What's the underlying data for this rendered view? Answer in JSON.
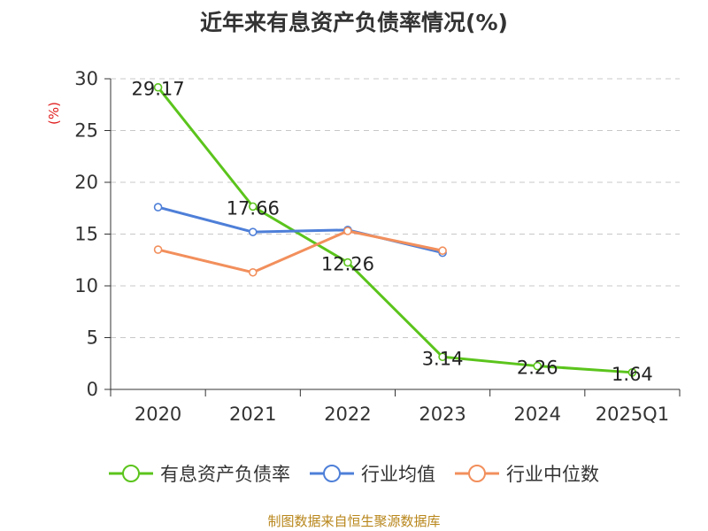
{
  "title": "近年来有息资产负债率情况(%)",
  "source": "制图数据来自恒生聚源数据库",
  "chart_data": {
    "type": "line",
    "ylabel": "(%)",
    "ylim": [
      0,
      30
    ],
    "yticks": [
      0,
      5,
      10,
      15,
      20,
      25,
      30
    ],
    "categories": [
      "2020",
      "2021",
      "2022",
      "2023",
      "2024",
      "2025Q1"
    ],
    "grid": true,
    "legend_position": "bottom",
    "series": [
      {
        "name": "有息资产负债率",
        "color": "#5bc41c",
        "values": [
          29.17,
          17.66,
          12.26,
          3.14,
          2.26,
          1.64
        ],
        "labels": [
          "29.17",
          "17.66",
          "12.26",
          "3.14",
          "2.26",
          "1.64"
        ]
      },
      {
        "name": "行业均值",
        "color": "#4e7fd8",
        "values": [
          17.6,
          15.2,
          15.4,
          13.2,
          null,
          null
        ]
      },
      {
        "name": "行业中位数",
        "color": "#f28f5c",
        "values": [
          13.5,
          11.3,
          15.3,
          13.4,
          null,
          null
        ]
      }
    ]
  }
}
